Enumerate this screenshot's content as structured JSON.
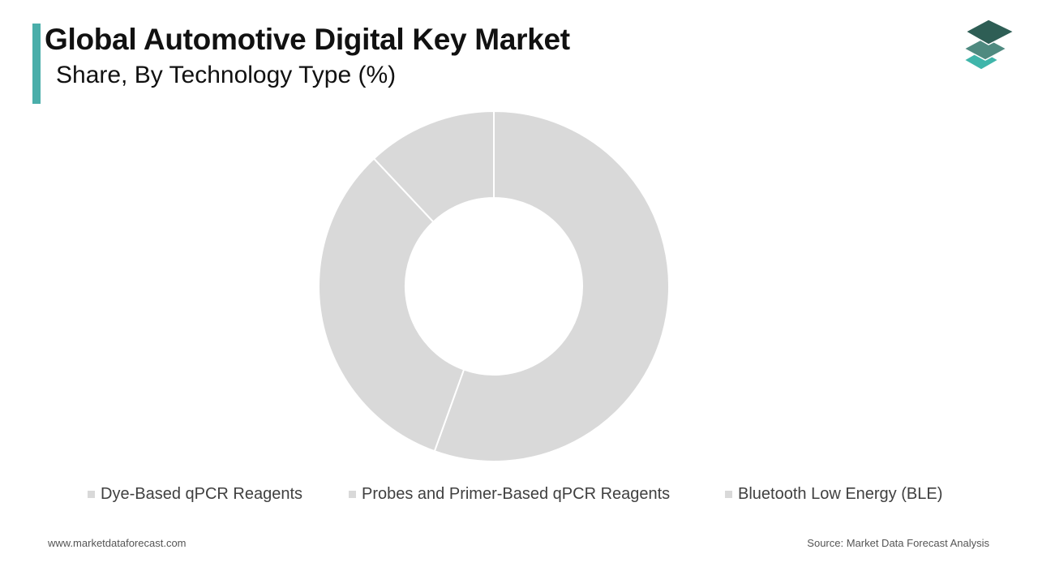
{
  "header": {
    "title": "Global Automotive Digital Key Market",
    "subtitle": "Share, By Technology Type (%)"
  },
  "footer": {
    "website": "www.marketdataforecast.com",
    "source": "Source: Market Data Forecast Analysis"
  },
  "colors": {
    "accent": "#4aaeaa",
    "slice": "#d9d9d9",
    "slice_border": "#ffffff",
    "legend_swatch": "#d9d9d9",
    "logo_top": "#2e5e55",
    "logo_middle": "#4f8a80",
    "logo_bottom": "#3fb5aa"
  },
  "icons": {
    "logo": "stacked-layers-icon"
  },
  "chart_data": {
    "type": "pie",
    "donut": true,
    "categories": [
      "Dye-Based qPCR Reagents",
      "Probes and Primer-Based qPCR Reagents",
      "Bluetooth Low Energy (BLE)"
    ],
    "values": [
      55.5,
      32.5,
      12.0
    ],
    "legend_position": "bottom",
    "start_angle": "top",
    "direction": "clockwise"
  }
}
